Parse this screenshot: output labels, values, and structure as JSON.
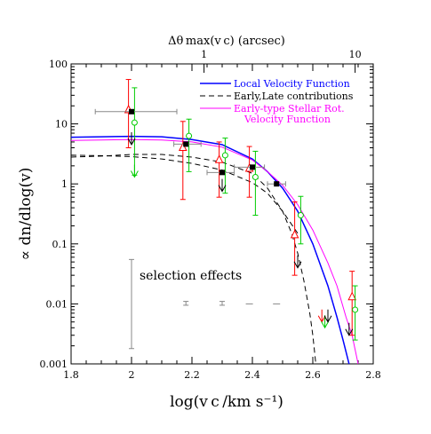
{
  "chart_data": {
    "type": "scatter",
    "xlabel": "log(v c /km s⁻¹)",
    "ylabel": "∝ dn/dlog(v)",
    "top_axis_label": "Δθ max(v c) (arcsec)",
    "top_axis_ticks": [
      {
        "label": "1",
        "x": 2.24
      },
      {
        "label": "10",
        "x": 2.74
      }
    ],
    "xlim": [
      1.8,
      2.8
    ],
    "ylim": [
      0.001,
      100
    ],
    "y_scale": "log",
    "x_ticks": [
      "1.8",
      "2",
      "2.2",
      "2.4",
      "2.6",
      "2.8"
    ],
    "y_ticks": [
      {
        "label": "100",
        "value": 100
      },
      {
        "label": "10",
        "value": 10
      },
      {
        "label": "1",
        "value": 1
      },
      {
        "label": "0.1",
        "value": 0.1
      },
      {
        "label": "0.01",
        "value": 0.01
      },
      {
        "label": "0.001",
        "value": 0.001
      }
    ],
    "legend": {
      "placement": "top-right",
      "entries": [
        {
          "label": "Local Velocity Function",
          "color": "#0000ff",
          "dash": "solid"
        },
        {
          "label": "Early,Late contributions",
          "color": "#000000",
          "dash": "dashed"
        },
        {
          "label": "Early-type Stellar Rot.",
          "label2": "Velocity Function",
          "color": "#ff00ff",
          "dash": "solid"
        }
      ]
    },
    "annotation": "selection effects",
    "colors": {
      "blue": "#0000ff",
      "magenta": "#ff00ff",
      "red": "#ff0000",
      "green": "#00cc00",
      "black": "#000000",
      "gray": "#888888"
    },
    "curves": [
      {
        "name": "local",
        "color": "#0000ff",
        "dash": "solid",
        "points": [
          [
            1.8,
            6.0
          ],
          [
            1.9,
            6.1
          ],
          [
            2.0,
            6.2
          ],
          [
            2.1,
            6.1
          ],
          [
            2.2,
            5.5
          ],
          [
            2.3,
            4.5
          ],
          [
            2.4,
            2.6
          ],
          [
            2.45,
            1.6
          ],
          [
            2.5,
            0.85
          ],
          [
            2.55,
            0.35
          ],
          [
            2.6,
            0.1
          ],
          [
            2.65,
            0.02
          ],
          [
            2.68,
            0.006
          ],
          [
            2.7,
            0.0025
          ],
          [
            2.72,
            0.001
          ]
        ]
      },
      {
        "name": "stellar",
        "color": "#ff00ff",
        "dash": "solid",
        "points": [
          [
            1.8,
            5.3
          ],
          [
            1.9,
            5.4
          ],
          [
            2.0,
            5.5
          ],
          [
            2.1,
            5.4
          ],
          [
            2.2,
            5.0
          ],
          [
            2.3,
            4.1
          ],
          [
            2.4,
            2.5
          ],
          [
            2.45,
            1.6
          ],
          [
            2.5,
            0.95
          ],
          [
            2.55,
            0.45
          ],
          [
            2.6,
            0.17
          ],
          [
            2.65,
            0.048
          ],
          [
            2.68,
            0.02
          ],
          [
            2.71,
            0.006
          ],
          [
            2.73,
            0.003
          ],
          [
            2.75,
            0.001
          ]
        ]
      },
      {
        "name": "early",
        "color": "#000000",
        "dash": "dashed",
        "points": [
          [
            1.8,
            2.8
          ],
          [
            1.9,
            2.9
          ],
          [
            2.0,
            3.1
          ],
          [
            2.1,
            3.1
          ],
          [
            2.2,
            2.8
          ],
          [
            2.3,
            2.3
          ],
          [
            2.4,
            1.5
          ],
          [
            2.45,
            0.85
          ],
          [
            2.5,
            0.35
          ],
          [
            2.53,
            0.15
          ],
          [
            2.55,
            0.07
          ],
          [
            2.57,
            0.025
          ],
          [
            2.59,
            0.007
          ],
          [
            2.6,
            0.003
          ],
          [
            2.61,
            0.001
          ]
        ]
      },
      {
        "name": "late",
        "color": "#000000",
        "dash": "dashed",
        "points": [
          [
            1.8,
            3.0
          ],
          [
            1.9,
            2.95
          ],
          [
            2.0,
            2.85
          ],
          [
            2.1,
            2.6
          ],
          [
            2.2,
            2.2
          ],
          [
            2.3,
            1.7
          ],
          [
            2.4,
            1.05
          ],
          [
            2.45,
            0.7
          ],
          [
            2.5,
            0.35
          ],
          [
            2.55,
            0.15
          ]
        ]
      }
    ],
    "black_squares": [
      {
        "x": 2.0,
        "y": 16.0,
        "xerr": [
          1.88,
          2.15
        ]
      },
      {
        "x": 2.18,
        "y": 4.6,
        "xerr": [
          2.14,
          2.23
        ]
      },
      {
        "x": 2.3,
        "y": 1.55,
        "xerr": [
          2.25,
          2.34
        ]
      },
      {
        "x": 2.4,
        "y": 1.9,
        "xerr": [
          2.34,
          2.44
        ]
      },
      {
        "x": 2.48,
        "y": 1.0,
        "xerr": [
          2.45,
          2.51
        ]
      }
    ],
    "red_triangles": [
      {
        "x": 1.99,
        "y": 17.0,
        "ylo": 4.0,
        "yhi": 55.0
      },
      {
        "x": 2.17,
        "y": 4.0,
        "ylo": 0.55,
        "yhi": 11.0
      },
      {
        "x": 2.29,
        "y": 2.5,
        "ylo": 0.6,
        "yhi": 5.0
      },
      {
        "x": 2.39,
        "y": 1.8,
        "ylo": 0.6,
        "yhi": 4.2
      },
      {
        "x": 2.54,
        "y": 0.14,
        "ylo": 0.03,
        "yhi": 0.5
      },
      {
        "x": 2.73,
        "y": 0.013,
        "ylo": 0.003,
        "yhi": 0.035
      }
    ],
    "green_circles": [
      {
        "x": 2.01,
        "y": 10.5,
        "ylo": 1.4,
        "yhi": 40.0
      },
      {
        "x": 2.19,
        "y": 6.3,
        "ylo": 1.6,
        "yhi": 12.0
      },
      {
        "x": 2.31,
        "y": 3.0,
        "ylo": 0.7,
        "yhi": 5.8
      },
      {
        "x": 2.41,
        "y": 1.3,
        "ylo": 0.3,
        "yhi": 3.5
      },
      {
        "x": 2.56,
        "y": 0.3,
        "ylo": 0.1,
        "yhi": 0.62
      },
      {
        "x": 2.74,
        "y": 0.008,
        "ylo": 0.0025,
        "yhi": 0.02
      }
    ],
    "upper_limits": [
      {
        "x": 2.0,
        "y": 4.5,
        "color": "#000000"
      },
      {
        "x": 2.01,
        "y": 1.3,
        "color": "#00cc00"
      },
      {
        "x": 2.3,
        "y": 0.75,
        "color": "#000000"
      },
      {
        "x": 2.55,
        "y": 0.04,
        "color": "#000000"
      },
      {
        "x": 2.63,
        "y": 0.005,
        "color": "#ff0000"
      },
      {
        "x": 2.64,
        "y": 0.004,
        "color": "#00cc00"
      },
      {
        "x": 2.65,
        "y": 0.005,
        "color": "#000000"
      },
      {
        "x": 2.72,
        "y": 0.003,
        "color": "#000000"
      }
    ],
    "selection_effects": [
      {
        "x": 2.0,
        "ylo": 0.0018,
        "yhi": 0.055,
        "style": "bar"
      },
      {
        "x": 2.18,
        "ylo": 0.0095,
        "yhi": 0.011,
        "style": "bar"
      },
      {
        "x": 2.3,
        "ylo": 0.0095,
        "yhi": 0.011,
        "style": "bar"
      },
      {
        "x": 2.39,
        "y": 0.01,
        "style": "dash"
      },
      {
        "x": 2.48,
        "y": 0.01,
        "style": "dash"
      }
    ]
  }
}
